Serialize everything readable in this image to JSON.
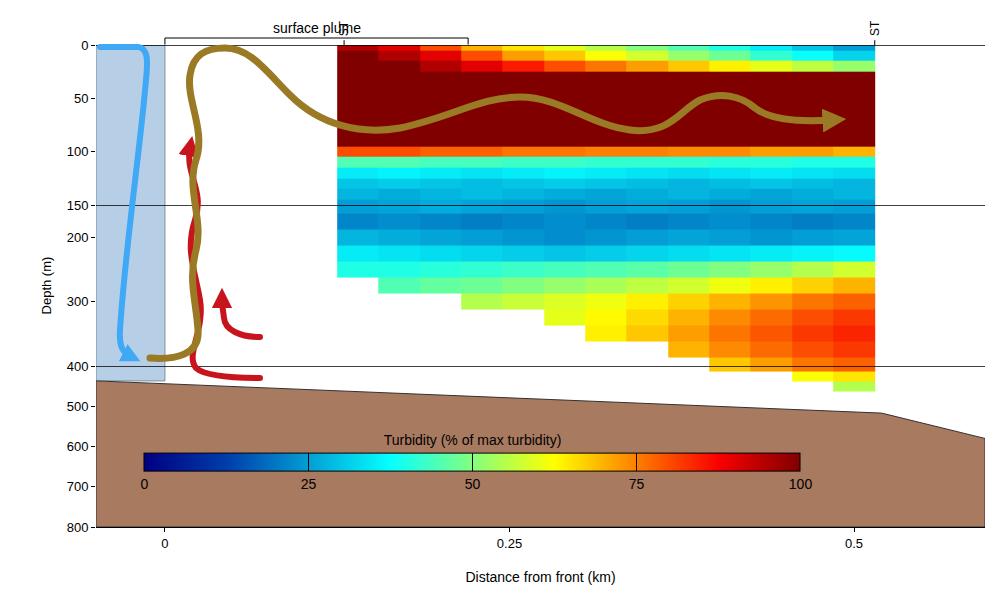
{
  "chart_data": {
    "type": "heatmap",
    "x_label": "Distance from front (km)",
    "y_label": "Depth (m)",
    "xlim": [
      -0.05,
      0.595
    ],
    "xticks": [
      0,
      0.25,
      0.5
    ],
    "y_segments": [
      {
        "ylim": [
          0,
          150
        ],
        "yticks": [
          0,
          50,
          100,
          150
        ]
      },
      {
        "ylim": [
          150,
          400
        ],
        "yticks": [
          200,
          300,
          400
        ]
      },
      {
        "ylim": [
          400,
          800
        ],
        "yticks": [
          500,
          600,
          700,
          800
        ]
      }
    ],
    "x": [
      0.14,
      0.17,
      0.2,
      0.23,
      0.26,
      0.29,
      0.32,
      0.35,
      0.38,
      0.41,
      0.44,
      0.47,
      0.5
    ],
    "y": [
      0,
      10,
      20,
      30,
      40,
      50,
      60,
      70,
      80,
      90,
      100,
      110,
      120,
      130,
      140,
      150,
      175,
      200,
      225,
      250,
      275,
      300,
      325,
      350,
      375,
      400,
      425,
      450
    ],
    "z": [
      [
        95,
        90,
        80,
        70,
        65,
        60,
        55,
        50,
        45,
        40,
        35,
        30,
        25
      ],
      [
        100,
        95,
        90,
        80,
        72,
        68,
        62,
        58,
        52,
        48,
        42,
        38,
        32
      ],
      [
        100,
        100,
        95,
        90,
        85,
        80,
        76,
        72,
        68,
        64,
        60,
        56,
        52
      ],
      [
        100,
        100,
        100,
        100,
        100,
        100,
        100,
        100,
        100,
        100,
        100,
        100,
        100
      ],
      [
        100,
        100,
        100,
        100,
        100,
        100,
        100,
        100,
        100,
        100,
        100,
        100,
        100
      ],
      [
        100,
        100,
        100,
        100,
        100,
        100,
        100,
        100,
        100,
        100,
        100,
        100,
        100
      ],
      [
        100,
        100,
        100,
        100,
        100,
        100,
        100,
        100,
        100,
        100,
        100,
        100,
        100
      ],
      [
        100,
        100,
        100,
        100,
        100,
        100,
        100,
        100,
        100,
        100,
        100,
        100,
        100
      ],
      [
        100,
        100,
        100,
        100,
        100,
        100,
        100,
        100,
        100,
        100,
        100,
        100,
        100
      ],
      [
        100,
        100,
        100,
        100,
        100,
        100,
        100,
        100,
        100,
        100,
        100,
        100,
        100
      ],
      [
        80,
        80,
        78,
        78,
        76,
        76,
        75,
        75,
        74,
        74,
        72,
        72,
        70
      ],
      [
        45,
        45,
        44,
        44,
        43,
        43,
        42,
        42,
        42,
        41,
        41,
        40,
        40
      ],
      [
        35,
        36,
        35,
        34,
        35,
        36,
        35,
        34,
        33,
        34,
        35,
        34,
        33
      ],
      [
        30,
        31,
        30,
        29,
        30,
        31,
        30,
        29,
        28,
        29,
        30,
        29,
        28
      ],
      [
        28,
        27,
        28,
        29,
        28,
        27,
        26,
        27,
        28,
        27,
        26,
        27,
        28
      ],
      [
        25,
        26,
        27,
        26,
        25,
        24,
        25,
        26,
        25,
        24,
        25,
        26,
        25
      ],
      [
        22,
        23,
        22,
        21,
        22,
        23,
        22,
        21,
        22,
        23,
        22,
        21,
        22
      ],
      [
        28,
        27,
        26,
        25,
        24,
        23,
        24,
        25,
        26,
        25,
        24,
        25,
        26
      ],
      [
        35,
        34,
        33,
        32,
        31,
        30,
        31,
        32,
        33,
        34,
        35,
        36,
        37
      ],
      [
        40,
        40,
        41,
        42,
        43,
        44,
        45,
        46,
        48,
        50,
        52,
        55,
        58
      ],
      [
        null,
        45,
        47,
        48,
        50,
        52,
        54,
        56,
        58,
        61,
        64,
        67,
        70
      ],
      [
        null,
        null,
        null,
        55,
        57,
        59,
        61,
        64,
        67,
        70,
        73,
        76,
        78
      ],
      [
        null,
        null,
        null,
        null,
        null,
        60,
        63,
        66,
        70,
        74,
        77,
        80,
        82
      ],
      [
        null,
        null,
        null,
        null,
        null,
        null,
        64,
        68,
        72,
        76,
        79,
        82,
        84
      ],
      [
        null,
        null,
        null,
        null,
        null,
        null,
        null,
        null,
        70,
        74,
        77,
        80,
        82
      ],
      [
        null,
        null,
        null,
        null,
        null,
        null,
        null,
        null,
        null,
        68,
        72,
        76,
        78
      ],
      [
        null,
        null,
        null,
        null,
        null,
        null,
        null,
        null,
        null,
        null,
        null,
        62,
        65
      ],
      [
        null,
        null,
        null,
        null,
        null,
        null,
        null,
        null,
        null,
        null,
        null,
        null,
        55
      ]
    ],
    "colorbar": {
      "title": "Turbidity (% of max turbidity)",
      "range": [
        0,
        100
      ],
      "ticks": [
        0,
        25,
        50,
        75,
        100
      ]
    },
    "seabed": {
      "x": [
        -0.05,
        0.52,
        0.595
      ],
      "depth": [
        437,
        517,
        580
      ]
    },
    "glacier": {
      "x": [
        -0.05,
        0
      ],
      "depth": [
        0,
        437
      ]
    },
    "annotations": [
      {
        "text": "surface plume",
        "x": [
          0,
          0.22
        ]
      },
      {
        "text": "ST",
        "x": 0.13
      },
      {
        "text": "ST",
        "x": 0.515
      }
    ]
  }
}
